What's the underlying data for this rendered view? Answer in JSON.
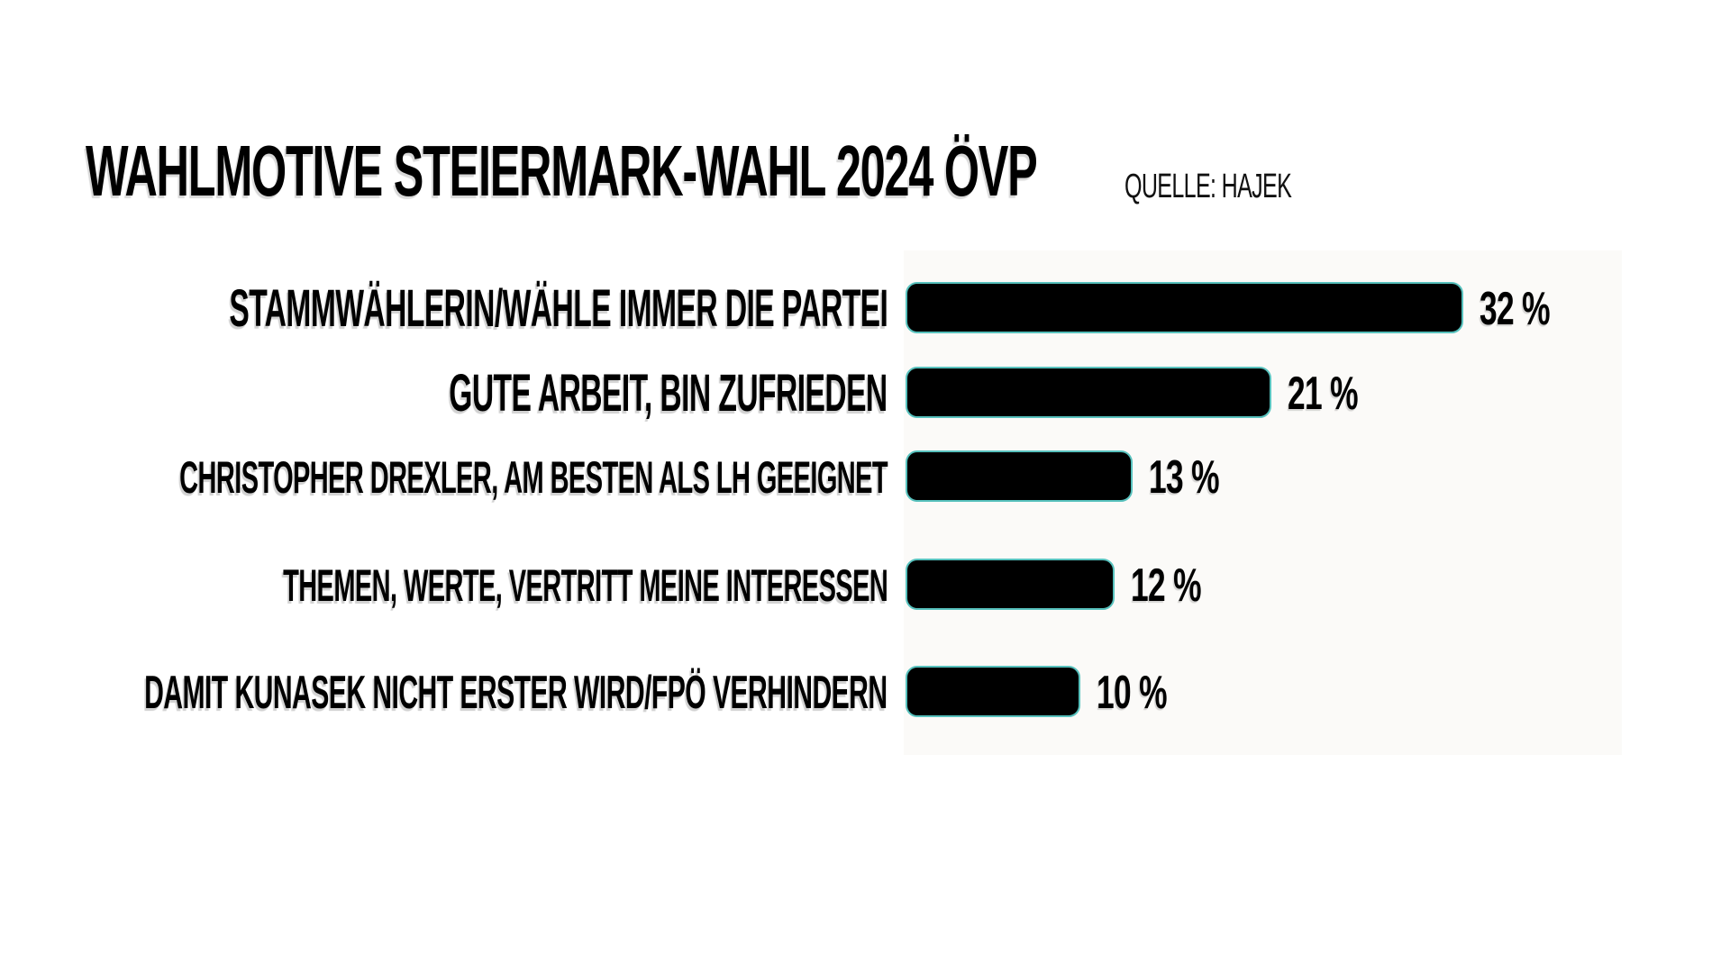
{
  "header": {
    "title": "WAHLMOTIVE STEIERMARK-WAHL 2024 ÖVP",
    "source": "QUELLE: HAJEK"
  },
  "chart_data": {
    "type": "bar",
    "orientation": "horizontal",
    "title": "WAHLMOTIVE STEIERMARK-WAHL 2024 ÖVP",
    "source": "QUELLE: HAJEK",
    "categories": [
      "STAMMWÄHLERIN/WÄHLE IMMER DIE PARTEI",
      "GUTE ARBEIT, BIN ZUFRIEDEN",
      "CHRISTOPHER DREXLER, AM BESTEN ALS LH GEEIGNET",
      "THEMEN, WERTE, VERTRITT MEINE INTERESSEN",
      "DAMIT KUNASEK NICHT ERSTER WIRD/FPÖ VERHINDERN"
    ],
    "values": [
      32,
      21,
      13,
      12,
      10
    ],
    "value_labels": [
      "32 %",
      "21 %",
      "13 %",
      "12 %",
      "10 %"
    ],
    "unit": "%",
    "xlim": [
      0,
      41
    ],
    "grid": false,
    "legend": "none",
    "bar_color": "#000000",
    "bar_outline_color": "#57c1bd",
    "plot_background": "#fbfaf8",
    "page_background": "#ffffff",
    "text_color": "#000000"
  }
}
